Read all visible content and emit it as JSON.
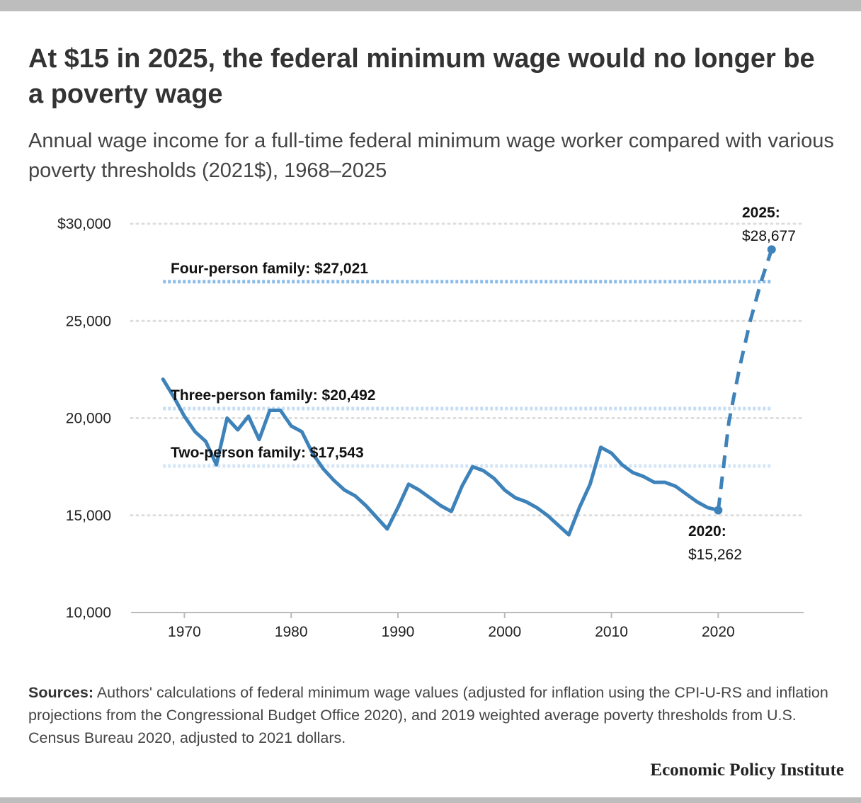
{
  "chart_data": {
    "type": "line",
    "title": "At $15 in 2025, the federal minimum wage would no longer be a poverty wage",
    "subtitle": "Annual wage income for a full-time federal minimum wage worker compared with various poverty thresholds (2021$), 1968–2025",
    "xlabel": "",
    "ylabel": "",
    "xlim": [
      1965,
      2028
    ],
    "ylim": [
      10000,
      30000
    ],
    "x_ticks": [
      1970,
      1980,
      1990,
      2000,
      2010,
      2020
    ],
    "x_tick_labels": [
      "1970",
      "1980",
      "1990",
      "2000",
      "2010",
      "2020"
    ],
    "y_ticks": [
      10000,
      15000,
      20000,
      25000,
      30000
    ],
    "y_tick_labels": [
      "10,000",
      "15,000",
      "20,000",
      "25,000",
      "$30,000"
    ],
    "grid": true,
    "series": [
      {
        "style": "solid",
        "color": "#3e82ba",
        "x": [
          1968,
          1969,
          1970,
          1971,
          1972,
          1973,
          1974,
          1975,
          1976,
          1977,
          1978,
          1979,
          1980,
          1981,
          1982,
          1983,
          1984,
          1985,
          1986,
          1987,
          1988,
          1989,
          1990,
          1991,
          1992,
          1993,
          1994,
          1995,
          1996,
          1997,
          1998,
          1999,
          2000,
          2001,
          2002,
          2003,
          2004,
          2005,
          2006,
          2007,
          2008,
          2009,
          2010,
          2011,
          2012,
          2013,
          2014,
          2015,
          2016,
          2017,
          2018,
          2019,
          2020
        ],
        "values": [
          22000,
          21100,
          20100,
          19300,
          18800,
          17600,
          20000,
          19400,
          20100,
          18900,
          20400,
          20400,
          19600,
          19300,
          18200,
          17400,
          16800,
          16300,
          16000,
          15500,
          14900,
          14300,
          15400,
          16600,
          16300,
          15900,
          15500,
          15200,
          16500,
          17500,
          17300,
          16900,
          16300,
          15900,
          15700,
          15400,
          15000,
          14500,
          14000,
          15400,
          16600,
          18500,
          18200,
          17600,
          17200,
          17000,
          16700,
          16700,
          16500,
          16100,
          15700,
          15400,
          15262
        ]
      },
      {
        "style": "dashed",
        "color": "#3e82ba",
        "x": [
          2020,
          2021,
          2022,
          2023,
          2024,
          2025
        ],
        "values": [
          15262,
          19800,
          22600,
          25000,
          27000,
          28677
        ]
      }
    ],
    "reference_lines": [
      {
        "label": "Four-person family: $27,021",
        "value": 27021,
        "color": "#8cbdea"
      },
      {
        "label": "Three-person family: $20,492",
        "value": 20492,
        "color": "#c6def3"
      },
      {
        "label": "Two-person family: $17,543",
        "value": 17543,
        "color": "#d4e6f6"
      }
    ],
    "annotations": [
      {
        "year_label": "2025:",
        "value_label": "$28,677",
        "x": 2025,
        "y": 28677
      },
      {
        "year_label": "2020:",
        "value_label": "$15,262",
        "x": 2020,
        "y": 15262
      }
    ]
  },
  "colors": {
    "line": "#3e82ba",
    "grid": "#dddddd",
    "axis": "#bbbbbb",
    "top_bar": "#bdbdbd"
  },
  "footer": {
    "sources_label": "Sources:",
    "sources_text": "Authors' calculations of federal minimum wage values (adjusted for inflation using the CPI-U-RS and inflation projections from the Congressional Budget Office 2020), and 2019 weighted average poverty thresholds from U.S. Census Bureau 2020, adjusted to 2021 dollars.",
    "brand": "Economic Policy Institute"
  }
}
